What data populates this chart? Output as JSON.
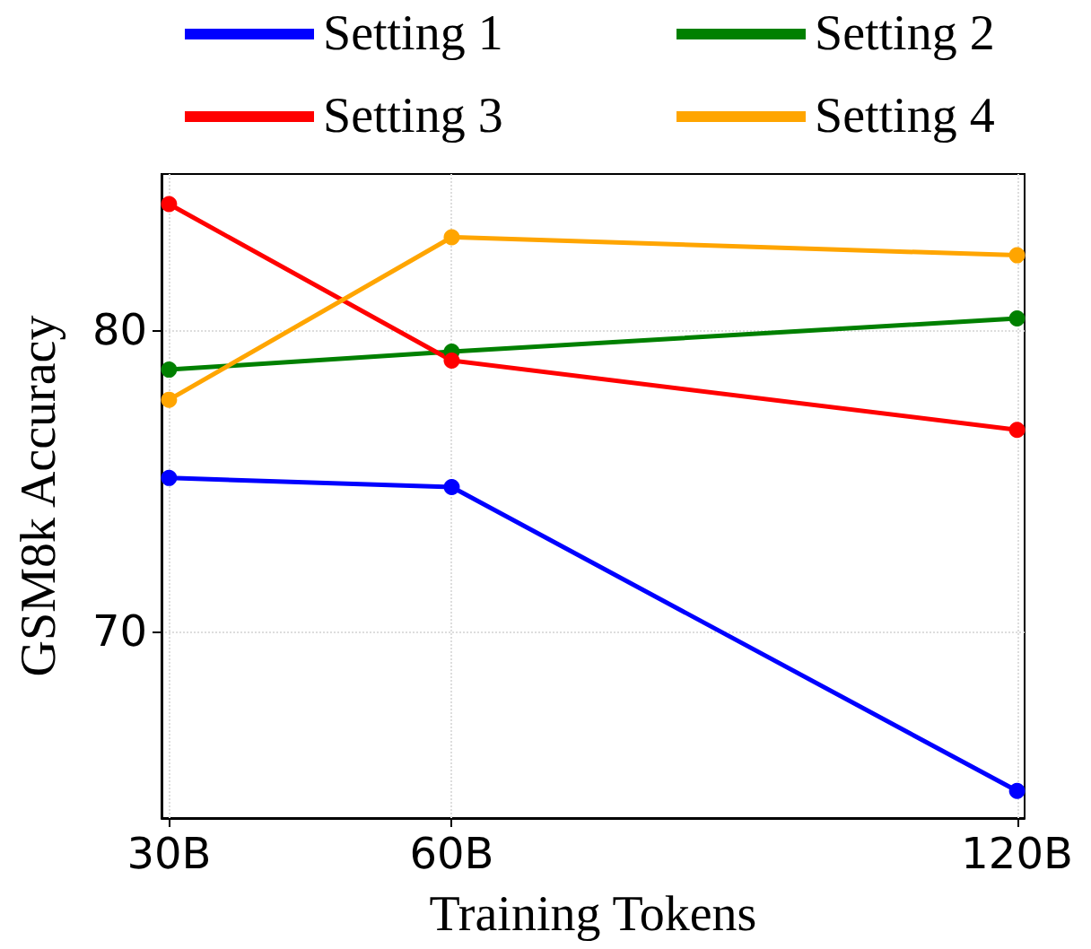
{
  "chart_data": {
    "type": "line",
    "xlabel": "Training Tokens",
    "ylabel": "GSM8k Accuracy",
    "x": [
      30,
      60,
      120
    ],
    "series": [
      {
        "name": "Setting 1",
        "color": "#0000ff",
        "values": [
          75.1,
          74.8,
          64.7
        ]
      },
      {
        "name": "Setting 2",
        "color": "#008000",
        "values": [
          78.7,
          79.3,
          80.4
        ]
      },
      {
        "name": "Setting 3",
        "color": "#ff0000",
        "values": [
          84.2,
          79.0,
          76.7
        ]
      },
      {
        "name": "Setting 4",
        "color": "#ffa500",
        "values": [
          77.7,
          83.1,
          82.5
        ]
      }
    ],
    "xlim": [
      29.2,
      120.8
    ],
    "xticks": [
      {
        "value": 30,
        "label": "30B"
      },
      {
        "value": 60,
        "label": "60B"
      },
      {
        "value": 120,
        "label": "120B"
      }
    ],
    "ylim": [
      63.8,
      85.2
    ],
    "yticks": [
      70,
      80
    ],
    "grid": true,
    "legend": "top",
    "marker": "circle",
    "line_style": "solid"
  }
}
